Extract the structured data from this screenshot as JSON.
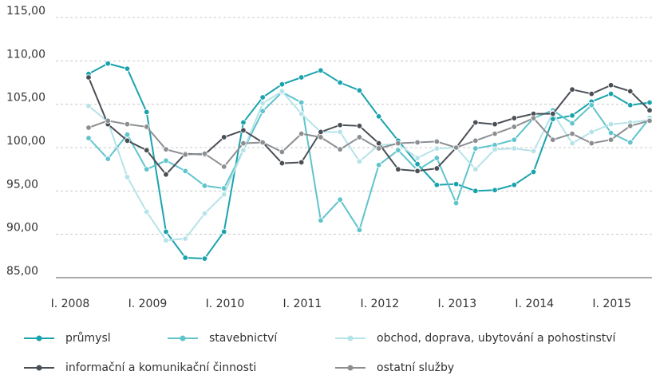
{
  "chart_data": {
    "type": "line",
    "categories": [
      "I. 2008",
      null,
      null,
      null,
      "I. 2009",
      null,
      null,
      null,
      "I. 2010",
      null,
      null,
      null,
      "I. 2011",
      null,
      null,
      null,
      "I. 2012",
      null,
      null,
      null,
      "I. 2013",
      null,
      null,
      null,
      "I. 2014",
      null,
      null,
      null,
      "I. 2015",
      null
    ],
    "ylim": [
      85,
      115
    ],
    "yticks": [
      {
        "value": 85,
        "label": "85,00"
      },
      {
        "value": 90,
        "label": "90,00"
      },
      {
        "value": 95,
        "label": "95,00"
      },
      {
        "value": 100,
        "label": "100,00"
      },
      {
        "value": 105,
        "label": "105,00"
      },
      {
        "value": 110,
        "label": "110,00"
      },
      {
        "value": 115,
        "label": "115,00"
      }
    ],
    "grid": true,
    "legend": "bottom",
    "series": [
      {
        "name": "průmysl",
        "color": "#1aa3ad",
        "values": [
          108.5,
          109.7,
          109.1,
          104.1,
          90.3,
          87.3,
          87.2,
          90.3,
          102.9,
          105.8,
          107.3,
          108.1,
          108.9,
          107.5,
          106.6,
          103.6,
          100.8,
          98.1,
          95.7,
          95.8,
          95.0,
          95.1,
          95.7,
          97.2,
          103.3,
          103.7,
          105.3,
          106.2,
          104.9,
          105.2
        ]
      },
      {
        "name": "stavebnictví",
        "color": "#5fc4cc",
        "values": [
          101.1,
          98.7,
          101.5,
          97.5,
          98.5,
          97.3,
          95.6,
          95.3,
          99.7,
          104.2,
          106.4,
          105.2,
          91.6,
          94.0,
          90.5,
          98.0,
          99.7,
          97.4,
          98.8,
          93.6,
          99.9,
          100.3,
          100.9,
          103.4,
          104.3,
          102.8,
          104.9,
          101.7,
          100.6,
          103.4
        ]
      },
      {
        "name": "obchod, doprava, ubytování a pohostinství",
        "color": "#b5e3e8",
        "values": [
          104.8,
          103.0,
          96.6,
          92.6,
          89.3,
          89.5,
          92.4,
          94.6,
          99.7,
          105.1,
          106.5,
          103.9,
          101.8,
          101.8,
          98.4,
          100.3,
          100.4,
          98.8,
          99.9,
          100.0,
          97.5,
          99.8,
          99.9,
          99.6,
          104.0,
          100.5,
          101.8,
          102.7,
          102.9,
          103.2
        ]
      },
      {
        "name": "informační a komunikační činnosti",
        "color": "#4a4f55",
        "values": [
          108.1,
          102.7,
          100.8,
          99.7,
          96.9,
          99.3,
          99.2,
          101.2,
          102.0,
          100.6,
          98.2,
          98.3,
          101.8,
          102.6,
          102.5,
          100.5,
          97.5,
          97.3,
          97.6,
          100.0,
          102.9,
          102.7,
          103.4,
          103.9,
          103.9,
          106.7,
          106.2,
          107.2,
          106.5,
          104.3
        ]
      },
      {
        "name": "ostatní služby",
        "color": "#8c8f92",
        "values": [
          102.3,
          103.1,
          102.7,
          102.4,
          99.8,
          99.2,
          99.3,
          97.8,
          100.5,
          100.6,
          99.5,
          101.6,
          101.2,
          99.8,
          101.2,
          99.9,
          100.5,
          100.6,
          100.7,
          100.0,
          100.8,
          101.6,
          102.4,
          103.4,
          100.9,
          101.6,
          100.5,
          100.9,
          102.5,
          103.1
        ]
      }
    ]
  }
}
